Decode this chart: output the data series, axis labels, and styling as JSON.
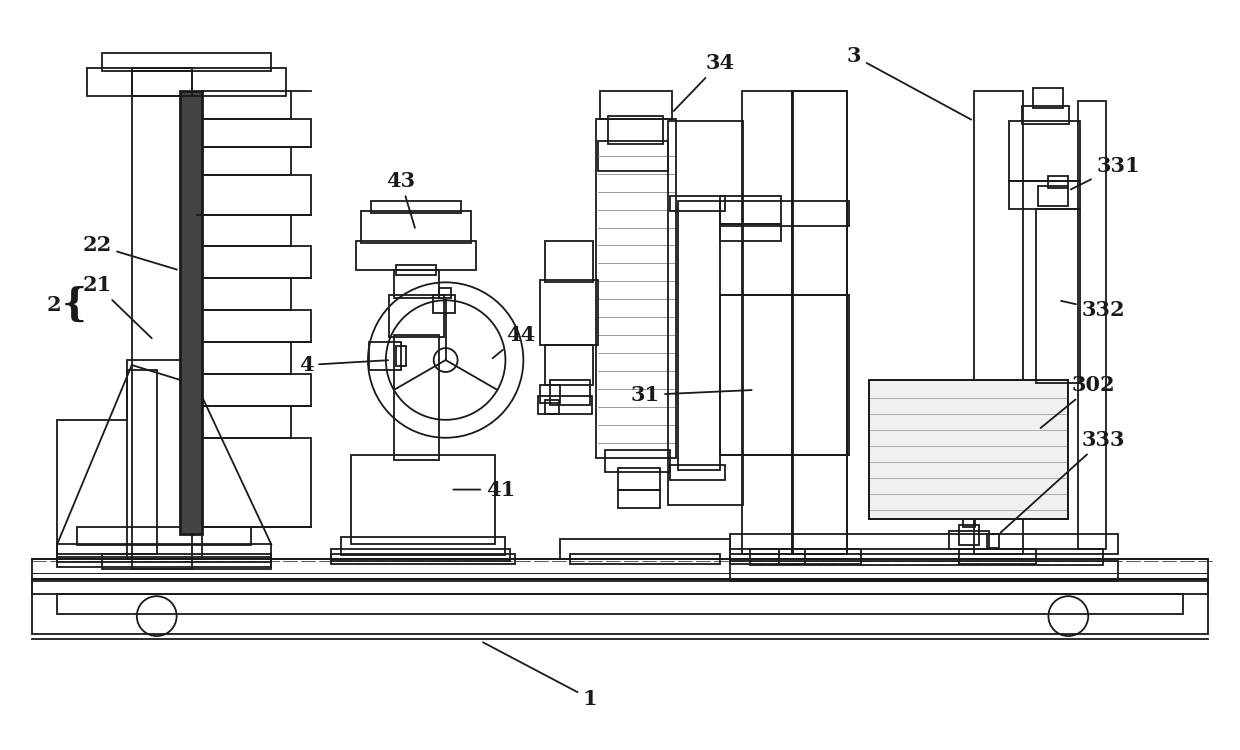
{
  "bg_color": "#ffffff",
  "lc": "#1a1a1a",
  "lw": 1.3,
  "fig_width": 12.4,
  "fig_height": 7.5
}
